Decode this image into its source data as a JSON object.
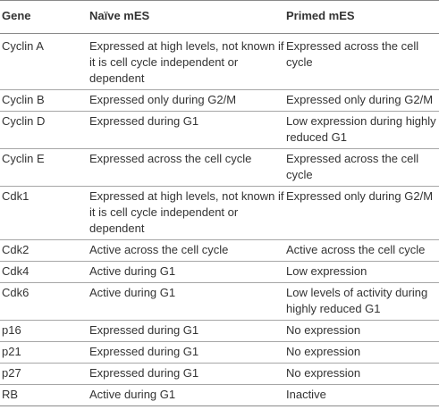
{
  "table": {
    "headers": [
      "Gene",
      "Naïve mES",
      "Primed mES"
    ],
    "rows": [
      [
        "Cyclin A",
        "Expressed at high levels, not known if it is cell cycle independent or dependent",
        "Expressed across the cell cycle"
      ],
      [
        "Cyclin B",
        "Expressed only during G2/M",
        "Expressed only during G2/M"
      ],
      [
        "Cyclin D",
        "Expressed during G1",
        "Low expression during highly reduced G1"
      ],
      [
        "Cyclin E",
        "Expressed across the cell cycle",
        "Expressed across the cell cycle"
      ],
      [
        "Cdk1",
        "Expressed at high levels, not known if it is cell cycle independent or dependent",
        "Expressed only during G2/M"
      ],
      [
        "Cdk2",
        "Active across the cell cycle",
        "Active across the cell cycle"
      ],
      [
        "Cdk4",
        "Active during G1",
        "Low expression"
      ],
      [
        "Cdk6",
        "Active during G1",
        "Low levels of activity during highly reduced G1"
      ],
      [
        "p16",
        "Expressed during G1",
        "No expression"
      ],
      [
        "p21",
        "Expressed during G1",
        "No expression"
      ],
      [
        "p27",
        "Expressed during G1",
        "No expression"
      ],
      [
        "RB",
        "Active during G1",
        "Inactive"
      ]
    ]
  }
}
